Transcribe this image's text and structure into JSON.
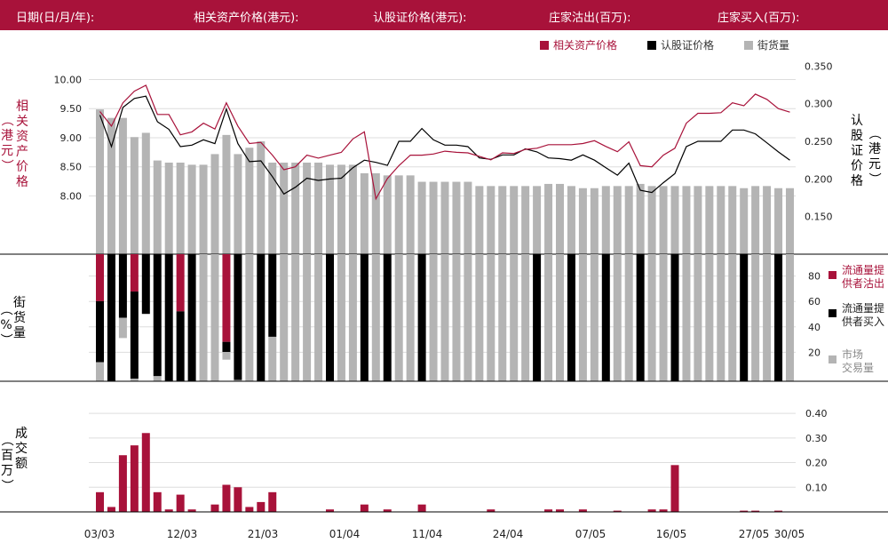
{
  "header": {
    "items": [
      "日期(日/月/年):",
      "相关资产价格(港元):",
      "认股证价格(港元):",
      "庄家沽出(百万):",
      "庄家买入(百万):"
    ]
  },
  "colors": {
    "accent": "#a8123a",
    "black": "#000000",
    "gray": "#b4b4b4",
    "grid": "#dddddd"
  },
  "chart_data": [
    {
      "type": "line",
      "legend": [
        "相关资产价格",
        "认股证价格",
        "街货量"
      ],
      "legend_position": "top-right",
      "y_left_label": "相关资产价格（港元）",
      "y_right_label": "认股证价格（港元）",
      "y_left_ticks": [
        "10.00",
        "9.50",
        "9.00",
        "8.50",
        "8.00"
      ],
      "y_right_ticks": [
        "0.350",
        "0.300",
        "0.250",
        "0.200",
        "0.150"
      ],
      "y_left_range": [
        7.0,
        10.45
      ],
      "y_right_range": [
        0.1,
        0.367
      ],
      "asset_price": [
        9.45,
        9.2,
        9.6,
        9.8,
        9.9,
        9.4,
        9.4,
        9.05,
        9.1,
        9.25,
        9.15,
        9.6,
        9.2,
        8.9,
        8.92,
        8.7,
        8.45,
        8.5,
        8.7,
        8.65,
        8.7,
        8.75,
        8.98,
        9.1,
        7.95,
        8.3,
        8.52,
        8.7,
        8.7,
        8.72,
        8.77,
        8.75,
        8.74,
        8.68,
        8.62,
        8.74,
        8.73,
        8.8,
        8.82,
        8.88,
        8.88,
        8.88,
        8.9,
        8.95,
        8.85,
        8.76,
        8.93,
        8.52,
        8.5,
        8.7,
        8.82,
        9.25,
        9.42,
        9.42,
        9.43,
        9.6,
        9.55,
        9.75,
        9.66,
        9.5,
        9.44
      ],
      "warrant_price": [
        0.285,
        0.243,
        0.295,
        0.307,
        0.31,
        0.276,
        0.266,
        0.243,
        0.245,
        0.252,
        0.247,
        0.293,
        0.247,
        0.223,
        0.224,
        0.203,
        0.18,
        0.189,
        0.201,
        0.198,
        0.2,
        0.201,
        0.215,
        0.225,
        0.222,
        0.218,
        0.25,
        0.25,
        0.267,
        0.252,
        0.245,
        0.245,
        0.243,
        0.228,
        0.226,
        0.232,
        0.232,
        0.24,
        0.236,
        0.228,
        0.227,
        0.225,
        0.232,
        0.225,
        0.215,
        0.205,
        0.221,
        0.185,
        0.182,
        0.195,
        0.207,
        0.243,
        0.25,
        0.25,
        0.25,
        0.265,
        0.265,
        0.26,
        0.248,
        0.236,
        0.225
      ],
      "outstanding_pct": [
        68,
        64,
        64,
        55,
        57,
        44,
        43,
        43,
        42,
        42,
        47,
        56,
        47,
        50,
        53,
        43,
        43,
        43,
        43,
        43,
        42,
        42,
        42,
        38,
        38,
        37,
        37,
        37,
        34,
        34,
        34,
        34,
        34,
        32,
        32,
        32,
        32,
        32,
        32,
        33,
        33,
        32,
        31,
        31,
        32,
        32,
        32,
        33,
        32,
        32,
        32,
        32,
        32,
        32,
        32,
        32,
        31,
        32,
        32,
        31,
        31
      ]
    },
    {
      "type": "bar",
      "y_label": "街货量（%）",
      "y_ticks": [
        "80",
        "60",
        "40",
        "20"
      ],
      "ylim": [
        0,
        100
      ],
      "legend": [
        "流通量提供者沽出",
        "流通量提供者买入",
        "市场交易量"
      ],
      "legend_position": "right",
      "lp_sell": [
        37,
        0,
        0,
        30,
        0,
        0,
        0,
        45,
        0,
        0,
        0,
        69,
        0,
        0,
        0,
        0,
        0,
        0,
        0,
        0,
        0,
        0,
        0,
        0,
        0,
        0,
        0,
        0,
        0,
        0,
        0,
        0,
        0,
        0,
        0,
        0,
        0,
        0,
        0,
        0,
        0,
        0,
        0,
        0,
        0,
        0,
        0,
        0,
        0,
        0,
        0,
        0,
        0,
        0,
        0,
        0,
        0,
        0,
        0,
        0,
        0
      ],
      "lp_buy": [
        48,
        100,
        50,
        70,
        47,
        96,
        100,
        55,
        100,
        0,
        0,
        8,
        99,
        0,
        100,
        65,
        0,
        0,
        0,
        0,
        100,
        0,
        0,
        100,
        0,
        100,
        0,
        0,
        100,
        0,
        0,
        0,
        0,
        0,
        0,
        0,
        0,
        0,
        100,
        0,
        0,
        100,
        0,
        0,
        100,
        0,
        0,
        100,
        0,
        0,
        100,
        0,
        0,
        0,
        0,
        0,
        100,
        0,
        0,
        100,
        0
      ],
      "market": [
        15,
        0,
        16,
        2,
        0,
        4,
        0,
        0,
        0,
        100,
        100,
        6,
        1,
        100,
        0,
        35,
        100,
        100,
        100,
        100,
        0,
        100,
        100,
        0,
        100,
        0,
        100,
        100,
        0,
        100,
        100,
        100,
        100,
        100,
        100,
        100,
        100,
        100,
        0,
        100,
        100,
        0,
        100,
        100,
        0,
        100,
        100,
        0,
        100,
        100,
        0,
        100,
        100,
        100,
        100,
        100,
        0,
        100,
        100,
        0,
        100
      ],
      "sell_over_buy": [
        true,
        false,
        false,
        false,
        false,
        false,
        false,
        true,
        false,
        false,
        false,
        true,
        false,
        false,
        false,
        false,
        false,
        false,
        false,
        false,
        false,
        false,
        false,
        false,
        false,
        false,
        false,
        false,
        false,
        false,
        false,
        false,
        false,
        false,
        false,
        false,
        false,
        false,
        false,
        false,
        false,
        false,
        false,
        false,
        false,
        false,
        false,
        false,
        false,
        false,
        false,
        false,
        false,
        false,
        false,
        false,
        false,
        false,
        false,
        false,
        false
      ]
    },
    {
      "type": "bar",
      "y_label": "成交额（百万）",
      "y_ticks": [
        "0.40",
        "0.30",
        "0.20",
        "0.10"
      ],
      "ylim": [
        0,
        0.44
      ],
      "values": [
        0.08,
        0.02,
        0.23,
        0.27,
        0.32,
        0.08,
        0.01,
        0.07,
        0.01,
        0,
        0.03,
        0.11,
        0.1,
        0.02,
        0.04,
        0.08,
        0,
        0,
        0,
        0,
        0.01,
        0,
        0,
        0.03,
        0,
        0.01,
        0,
        0,
        0.03,
        0,
        0,
        0,
        0,
        0,
        0.01,
        0,
        0,
        0,
        0,
        0.01,
        0.01,
        0,
        0.01,
        0,
        0,
        0.005,
        0,
        0,
        0.01,
        0.01,
        0.19,
        0,
        0,
        0,
        0,
        0,
        0.005,
        0.005,
        0,
        0.005,
        0
      ],
      "x_ticks": [
        "03/03",
        "12/03",
        "21/03",
        "01/04",
        "11/04",
        "24/04",
        "07/05",
        "16/05",
        "27/05",
        "30/05"
      ]
    }
  ]
}
